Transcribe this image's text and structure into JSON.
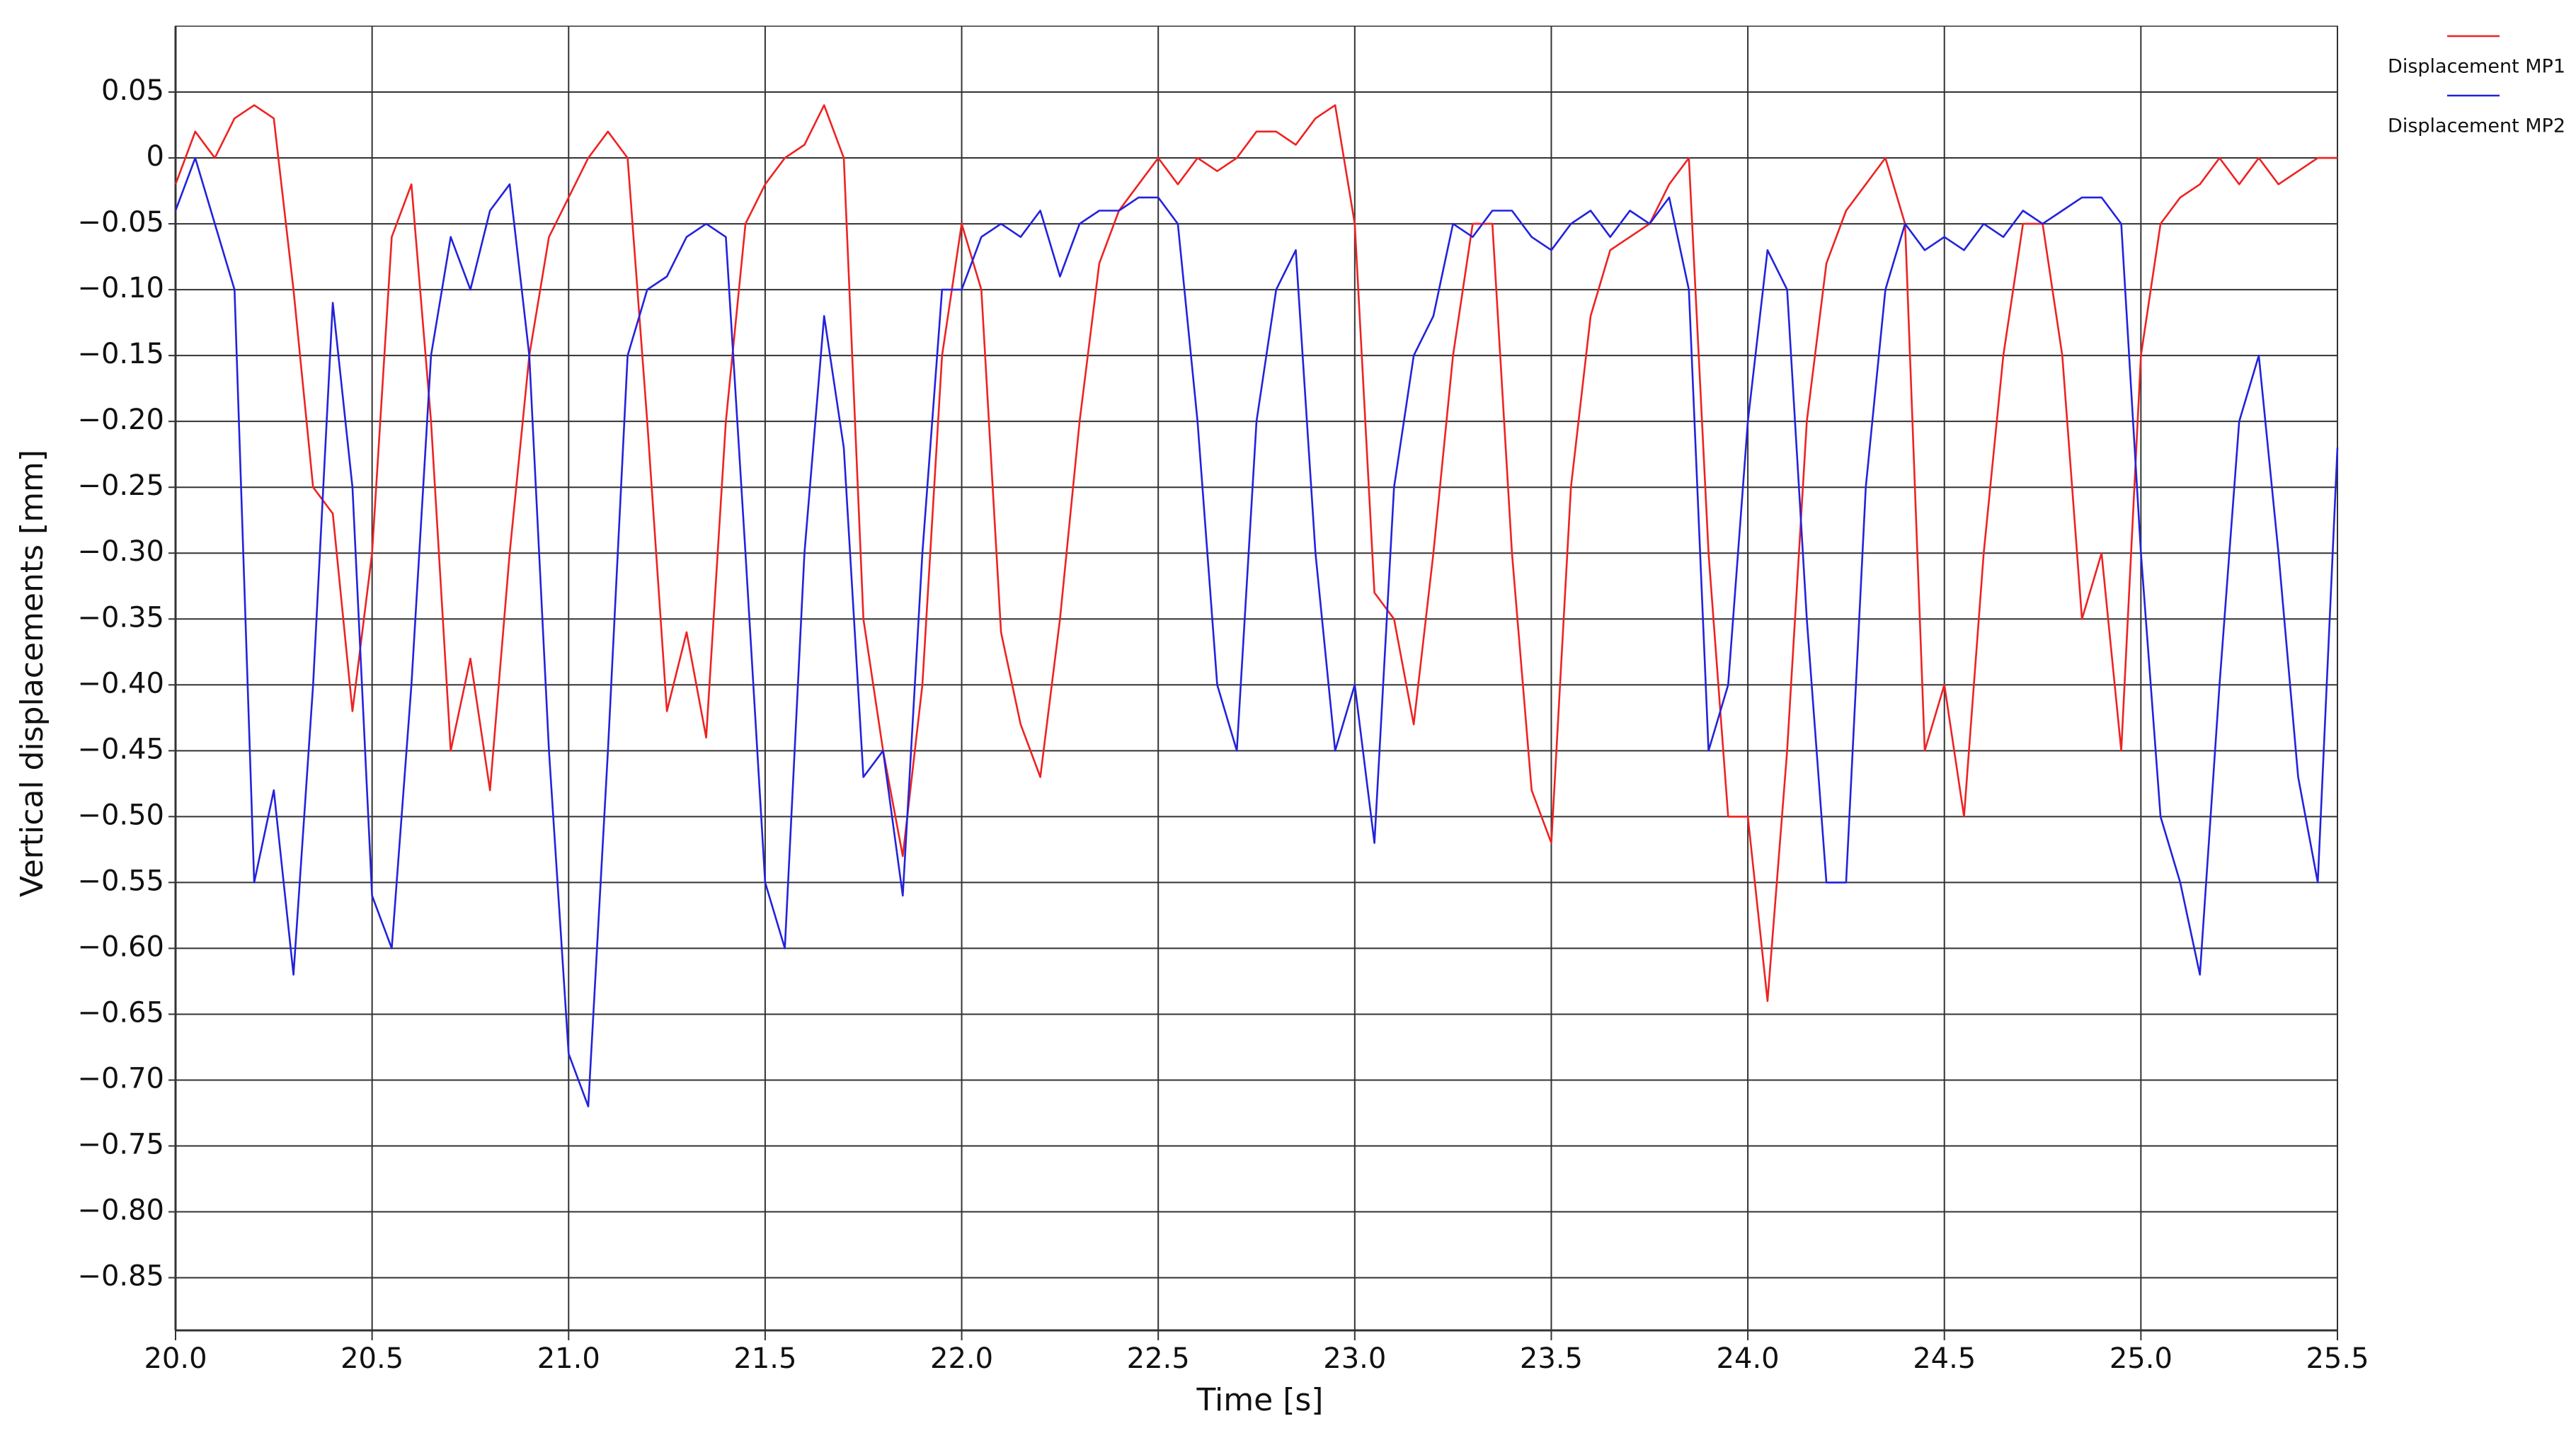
{
  "chart_data": {
    "type": "line",
    "xlabel": "Time [s]",
    "ylabel": "Vertical displacements [mm]",
    "xlim": [
      20,
      25.5
    ],
    "ylim": [
      -0.89,
      0.1
    ],
    "xticks": [
      {
        "value": 20,
        "label": "20.0"
      },
      20.5,
      {
        "value": 21,
        "label": "21.0"
      },
      21.5,
      {
        "value": 22,
        "label": "22.0"
      },
      22.5,
      {
        "value": 23,
        "label": "23.0"
      },
      23.5,
      {
        "value": 24,
        "label": "24.0"
      },
      24.5,
      {
        "value": 25,
        "label": "25.0"
      },
      25.5
    ],
    "yticks": [
      0.05,
      0,
      {
        "value": -0.05,
        "label": "−0.05"
      },
      {
        "value": -0.1,
        "label": "−0.10"
      },
      {
        "value": -0.15,
        "label": "−0.15"
      },
      {
        "value": -0.2,
        "label": "−0.20"
      },
      {
        "value": -0.25,
        "label": "−0.25"
      },
      {
        "value": -0.3,
        "label": "−0.30"
      },
      {
        "value": -0.35,
        "label": "−0.35"
      },
      {
        "value": -0.4,
        "label": "−0.40"
      },
      {
        "value": -0.45,
        "label": "−0.45"
      },
      {
        "value": -0.5,
        "label": "−0.50"
      },
      {
        "value": -0.55,
        "label": "−0.55"
      },
      {
        "value": -0.6,
        "label": "−0.60"
      },
      {
        "value": -0.65,
        "label": "−0.65"
      },
      {
        "value": -0.7,
        "label": "−0.70"
      },
      {
        "value": -0.75,
        "label": "−0.75"
      },
      {
        "value": -0.8,
        "label": "−0.80"
      },
      {
        "value": -0.85,
        "label": "−0.85"
      }
    ],
    "grid": true,
    "legend": "outside-top-right",
    "x": [
      20,
      20.05,
      20.1,
      20.15,
      20.2,
      20.25,
      20.3,
      20.35,
      20.4,
      20.45,
      20.5,
      20.55,
      20.6,
      20.65,
      20.7,
      20.75,
      20.8,
      20.85,
      20.9,
      20.95,
      21,
      21.05,
      21.1,
      21.15,
      21.2,
      21.25,
      21.3,
      21.35,
      21.4,
      21.45,
      21.5,
      21.55,
      21.6,
      21.65,
      21.7,
      21.75,
      21.8,
      21.85,
      21.9,
      21.95,
      22,
      22.05,
      22.1,
      22.15,
      22.2,
      22.25,
      22.3,
      22.35,
      22.4,
      22.45,
      22.5,
      22.55,
      22.6,
      22.65,
      22.7,
      22.75,
      22.8,
      22.85,
      22.9,
      22.95,
      23,
      23.05,
      23.1,
      23.15,
      23.2,
      23.25,
      23.3,
      23.35,
      23.4,
      23.45,
      23.5,
      23.55,
      23.6,
      23.65,
      23.7,
      23.75,
      23.8,
      23.85,
      23.9,
      23.95,
      24,
      24.05,
      24.1,
      24.15,
      24.2,
      24.25,
      24.3,
      24.35,
      24.4,
      24.45,
      24.5,
      24.55,
      24.6,
      24.65,
      24.7,
      24.75,
      24.8,
      24.85,
      24.9,
      24.95,
      25,
      25.05,
      25.1,
      25.15,
      25.2,
      25.25,
      25.3,
      25.35,
      25.4,
      25.45,
      25.5
    ],
    "series": [
      {
        "name": "Displacement MP1",
        "color": "#ee2222",
        "values": [
          -0.02,
          0.02,
          0.0,
          0.03,
          0.04,
          0.03,
          -0.1,
          -0.25,
          -0.27,
          -0.42,
          -0.3,
          -0.06,
          -0.02,
          -0.2,
          -0.45,
          -0.38,
          -0.48,
          -0.3,
          -0.15,
          -0.06,
          -0.03,
          0.0,
          0.02,
          0.0,
          -0.2,
          -0.42,
          -0.36,
          -0.44,
          -0.2,
          -0.05,
          -0.02,
          0.0,
          0.01,
          0.04,
          0.0,
          -0.35,
          -0.45,
          -0.53,
          -0.4,
          -0.15,
          -0.05,
          -0.1,
          -0.36,
          -0.43,
          -0.47,
          -0.35,
          -0.2,
          -0.08,
          -0.04,
          -0.02,
          0.0,
          -0.02,
          0.0,
          -0.01,
          0.0,
          0.02,
          0.02,
          0.01,
          0.03,
          0.04,
          -0.05,
          -0.33,
          -0.35,
          -0.43,
          -0.3,
          -0.15,
          -0.05,
          -0.05,
          -0.3,
          -0.48,
          -0.52,
          -0.25,
          -0.12,
          -0.07,
          -0.06,
          -0.05,
          -0.02,
          0.0,
          -0.3,
          -0.5,
          -0.5,
          -0.64,
          -0.45,
          -0.2,
          -0.08,
          -0.04,
          -0.02,
          0.0,
          -0.05,
          -0.45,
          -0.4,
          -0.5,
          -0.3,
          -0.15,
          -0.05,
          -0.05,
          -0.15,
          -0.35,
          -0.3,
          -0.45,
          -0.15,
          -0.05,
          -0.03,
          -0.02,
          0.0,
          -0.02,
          0.0,
          -0.02,
          -0.01,
          0.0,
          0.0
        ]
      },
      {
        "name": "Displacement MP2",
        "color": "#2222dd",
        "values": [
          -0.04,
          0.0,
          -0.05,
          -0.1,
          -0.55,
          -0.48,
          -0.62,
          -0.4,
          -0.11,
          -0.25,
          -0.56,
          -0.6,
          -0.4,
          -0.15,
          -0.06,
          -0.1,
          -0.04,
          -0.02,
          -0.15,
          -0.45,
          -0.68,
          -0.72,
          -0.45,
          -0.15,
          -0.1,
          -0.09,
          -0.06,
          -0.05,
          -0.06,
          -0.3,
          -0.55,
          -0.6,
          -0.3,
          -0.12,
          -0.22,
          -0.47,
          -0.45,
          -0.56,
          -0.3,
          -0.1,
          -0.1,
          -0.06,
          -0.05,
          -0.06,
          -0.04,
          -0.09,
          -0.05,
          -0.04,
          -0.04,
          -0.03,
          -0.03,
          -0.05,
          -0.2,
          -0.4,
          -0.45,
          -0.2,
          -0.1,
          -0.07,
          -0.3,
          -0.45,
          -0.4,
          -0.52,
          -0.25,
          -0.15,
          -0.12,
          -0.05,
          -0.06,
          -0.04,
          -0.04,
          -0.06,
          -0.07,
          -0.05,
          -0.04,
          -0.06,
          -0.04,
          -0.05,
          -0.03,
          -0.1,
          -0.45,
          -0.4,
          -0.2,
          -0.07,
          -0.1,
          -0.35,
          -0.55,
          -0.55,
          -0.25,
          -0.1,
          -0.05,
          -0.07,
          -0.06,
          -0.07,
          -0.05,
          -0.06,
          -0.04,
          -0.05,
          -0.04,
          -0.03,
          -0.03,
          -0.05,
          -0.3,
          -0.5,
          -0.55,
          -0.62,
          -0.4,
          -0.2,
          -0.15,
          -0.3,
          -0.47,
          -0.55,
          -0.22
        ]
      }
    ]
  }
}
